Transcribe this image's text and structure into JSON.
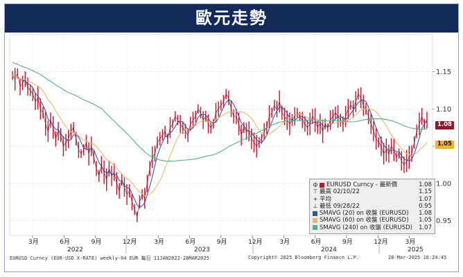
{
  "page_title": "歐元走勢",
  "chart_data": {
    "type": "line",
    "y_ticks": [
      "1.15",
      "1.10",
      "1.05",
      "1.00",
      "0.95"
    ],
    "ylim": [
      0.93,
      1.2
    ],
    "x_ticks": [
      "3月",
      "6月",
      "9月",
      "12月",
      "3月",
      "6月",
      "9月",
      "12月",
      "3月",
      "6月",
      "9月",
      "12月",
      "3月"
    ],
    "years": [
      "2022",
      "2023",
      "2024",
      "2025"
    ],
    "grid": true,
    "legend_placement": "bottom-right",
    "series": [
      {
        "name": "EURUSD Curncy",
        "color": "#c8102e",
        "style": "ohlc-weekly",
        "values": [
          1.145,
          1.14,
          1.148,
          1.13,
          1.135,
          1.14,
          1.13,
          1.125,
          1.12,
          1.11,
          1.115,
          1.1,
          1.095,
          1.08,
          1.07,
          1.085,
          1.075,
          1.06,
          1.07,
          1.065,
          1.05,
          1.055,
          1.06,
          1.07,
          1.075,
          1.06,
          1.045,
          1.04,
          1.045,
          1.055,
          1.04,
          1.05,
          1.035,
          1.02,
          1.01,
          1.025,
          1.015,
          1.005,
          1.02,
          1.01,
          1.015,
          1.0,
          0.99,
          1.005,
          0.995,
          0.985,
          0.99,
          0.975,
          0.965,
          0.955,
          0.975,
          0.985,
          0.98,
          1.0,
          1.02,
          1.035,
          1.04,
          1.055,
          1.06,
          1.065,
          1.07,
          1.06,
          1.075,
          1.08,
          1.09,
          1.085,
          1.08,
          1.075,
          1.07,
          1.065,
          1.08,
          1.085,
          1.09,
          1.1,
          1.095,
          1.085,
          1.09,
          1.08,
          1.075,
          1.08,
          1.095,
          1.1,
          1.105,
          1.11,
          1.12,
          1.115,
          1.1,
          1.09,
          1.09,
          1.08,
          1.065,
          1.075,
          1.07,
          1.07,
          1.06,
          1.055,
          1.05,
          1.055,
          1.06,
          1.07,
          1.075,
          1.09,
          1.095,
          1.105,
          1.1,
          1.11,
          1.095,
          1.09,
          1.085,
          1.08,
          1.085,
          1.09,
          1.095,
          1.09,
          1.085,
          1.08,
          1.075,
          1.08,
          1.09,
          1.085,
          1.075,
          1.08,
          1.07,
          1.08,
          1.075,
          1.085,
          1.09,
          1.095,
          1.09,
          1.085,
          1.08,
          1.09,
          1.1,
          1.105,
          1.1,
          1.11,
          1.12,
          1.115,
          1.105,
          1.1,
          1.09,
          1.08,
          1.07,
          1.06,
          1.055,
          1.05,
          1.04,
          1.045,
          1.04,
          1.05,
          1.045,
          1.035,
          1.04,
          1.03,
          1.025,
          1.03,
          1.035,
          1.04,
          1.055,
          1.07,
          1.08,
          1.09,
          1.08,
          1.085
        ]
      },
      {
        "name": "SMAVG (20) on 收盤 (EURUSD)",
        "color": "#2d5aa8",
        "label": "1.08"
      },
      {
        "name": "SMAVG (60) on 收盤 (EURUSD)",
        "color": "#f0b468",
        "label": "1.05"
      },
      {
        "name": "SMAVG (240) on 收盤 (EURUSD)",
        "color": "#4fae8c",
        "label": "1.07"
      }
    ],
    "last_price_label": "1.08",
    "sma60_label": "1.05"
  },
  "legend": {
    "title": "EURUSD Curncy - 最新價",
    "title_value": "1.08",
    "high_label": "最高 02/10/22",
    "high_value": "1.15",
    "avg_label": "平均",
    "avg_value": "1.07",
    "low_label": "最低 09/28/22",
    "low_value": "0.95",
    "sma20_label": "SMAVG (20)  on 收盤 (EURUSD)",
    "sma20_value": "1.08",
    "sma60_label": "SMAVG (60)  on 收盤 (EURUSD)",
    "sma60_value": "1.05",
    "sma240_label": "SMAVG (240) on 收盤 (EURUSD)",
    "sma240_value": "1.07",
    "colors": {
      "price": "#c8102e",
      "sma20": "#2d5aa8",
      "sma60": "#f0b468",
      "sma240": "#4fae8c"
    }
  },
  "footer": {
    "left": "EURUSD Curncy (EUR-USD X-RATE) weekly-04 EUR  每日 11JAN2022-28MAR2025",
    "center": "Copyright© 2025 Bloomberg Finance L.P.",
    "right": "28-Mar-2025 16:24:45"
  }
}
